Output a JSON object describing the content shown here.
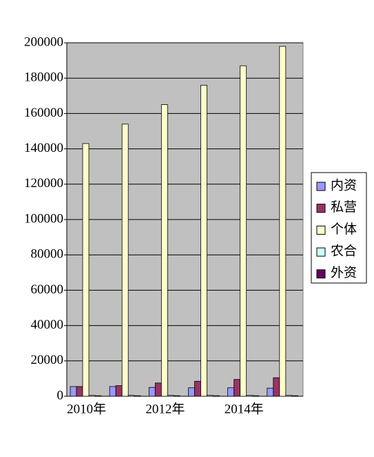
{
  "chart_data": {
    "type": "bar",
    "categories": [
      "2010年",
      null,
      "2012年",
      null,
      "2014年",
      null
    ],
    "series": [
      {
        "name": "内资",
        "color": "#9999ff",
        "values": [
          5500,
          5500,
          5000,
          4800,
          4800,
          4600
        ]
      },
      {
        "name": "私营",
        "color": "#993366",
        "values": [
          5500,
          6000,
          7500,
          8500,
          9500,
          10500
        ]
      },
      {
        "name": "个体",
        "color": "#ffffcc",
        "values": [
          143000,
          154000,
          165000,
          176000,
          187000,
          198000
        ]
      },
      {
        "name": "农合",
        "color": "#ccffff",
        "values": [
          500,
          500,
          500,
          500,
          500,
          500
        ]
      },
      {
        "name": "外资",
        "color": "#660066",
        "values": [
          300,
          300,
          300,
          300,
          300,
          300
        ]
      }
    ],
    "ylim": [
      0,
      200000
    ],
    "yticks": [
      0,
      20000,
      40000,
      60000,
      80000,
      100000,
      120000,
      140000,
      160000,
      180000,
      200000
    ],
    "grid": true,
    "legend": "right",
    "plot_background": "#c0c0c0"
  }
}
